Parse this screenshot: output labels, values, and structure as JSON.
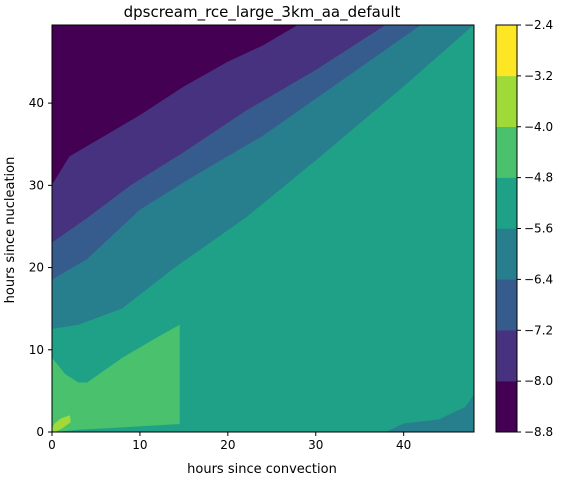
{
  "chart_data": {
    "type": "contour",
    "title": "dpscream_rce_large_3km_aa_default",
    "xlabel": "hours since convection",
    "ylabel": "hours since nucleation",
    "xlim": [
      0,
      48
    ],
    "ylim": [
      0,
      49.5
    ],
    "x_ticks": [
      0,
      10,
      20,
      30,
      40
    ],
    "y_ticks": [
      0,
      10,
      20,
      30,
      40
    ],
    "x_tick_labels": [
      "0",
      "10",
      "20",
      "30",
      "40"
    ],
    "y_tick_labels": [
      "0",
      "10",
      "20",
      "30",
      "40"
    ],
    "colorbar": {
      "levels": [
        -8.8,
        -8.0,
        -7.2,
        -6.4,
        -5.6,
        -4.8,
        -4.0,
        -3.2,
        -2.4
      ],
      "labels": [
        "−8.8",
        "−8.0",
        "−7.2",
        "−6.4",
        "−5.6",
        "−4.8",
        "−4.0",
        "−3.2",
        "−2.4"
      ],
      "colors": [
        "#440154",
        "#46327e",
        "#365c8d",
        "#277f8e",
        "#1fa187",
        "#4ac16d",
        "#a0da39",
        "#fde725"
      ]
    },
    "regions": [
      {
        "band": "-8.8 to -8.0",
        "color": "#440154",
        "boundary": [
          [
            0,
            30
          ],
          [
            2,
            33.5
          ],
          [
            6,
            36
          ],
          [
            10,
            38.5
          ],
          [
            15,
            42
          ],
          [
            20,
            45
          ],
          [
            24,
            47
          ],
          [
            28,
            49.5
          ],
          [
            0,
            49.5
          ]
        ]
      },
      {
        "band": "-8.0 to -7.2",
        "color": "#46327e",
        "boundary": [
          [
            0,
            30
          ],
          [
            2,
            33.5
          ],
          [
            6,
            36
          ],
          [
            10,
            38.5
          ],
          [
            15,
            42
          ],
          [
            20,
            45
          ],
          [
            24,
            47
          ],
          [
            28,
            49.5
          ],
          [
            38,
            49.5
          ],
          [
            30,
            44
          ],
          [
            22,
            39
          ],
          [
            15,
            34
          ],
          [
            9,
            30
          ],
          [
            4,
            26
          ],
          [
            0,
            23
          ]
        ]
      },
      {
        "band": "-7.2 to -6.4",
        "color": "#365c8d",
        "boundary": [
          [
            0,
            23
          ],
          [
            4,
            26
          ],
          [
            9,
            30
          ],
          [
            15,
            34
          ],
          [
            22,
            39
          ],
          [
            30,
            44
          ],
          [
            38,
            49.5
          ],
          [
            42,
            49.5
          ],
          [
            32,
            42
          ],
          [
            24,
            36
          ],
          [
            16,
            31
          ],
          [
            10,
            27
          ],
          [
            4,
            21
          ],
          [
            0,
            18.5
          ]
        ]
      },
      {
        "band": "-6.4 to -5.6",
        "color": "#277f8e",
        "boundary": [
          [
            0,
            18.5
          ],
          [
            4,
            21
          ],
          [
            10,
            27
          ],
          [
            16,
            31
          ],
          [
            24,
            36
          ],
          [
            32,
            42
          ],
          [
            42,
            49.5
          ],
          [
            48,
            49.5
          ],
          [
            40,
            42
          ],
          [
            30,
            33
          ],
          [
            22,
            26
          ],
          [
            14,
            20
          ],
          [
            8,
            15
          ],
          [
            3,
            13
          ],
          [
            0,
            12.5
          ]
        ]
      },
      {
        "band": "-5.6 to -4.8",
        "color": "#1fa187",
        "boundary": [
          [
            0,
            12.5
          ],
          [
            3,
            13
          ],
          [
            8,
            15
          ],
          [
            14,
            20
          ],
          [
            22,
            26
          ],
          [
            30,
            33
          ],
          [
            40,
            42
          ],
          [
            48,
            49.5
          ],
          [
            48,
            0
          ],
          [
            0,
            0
          ]
        ]
      },
      {
        "band": "-4.8 to -4.0 (lower left)",
        "color": "#4ac16d",
        "boundary": [
          [
            0,
            2.5
          ],
          [
            2,
            3.5
          ],
          [
            4,
            6
          ],
          [
            8,
            9
          ],
          [
            12,
            11.5
          ],
          [
            14.5,
            13
          ],
          [
            14.5,
            1
          ],
          [
            8,
            0.6
          ],
          [
            3,
            0.3
          ],
          [
            0,
            0
          ]
        ]
      },
      {
        "band": "-4.8 to -4.0 (left strip)",
        "color": "#4ac16d",
        "boundary": [
          [
            0,
            0
          ],
          [
            0,
            9
          ],
          [
            1.5,
            7
          ],
          [
            3,
            6
          ],
          [
            4,
            6
          ],
          [
            3,
            4
          ],
          [
            1,
            1
          ],
          [
            0.5,
            0
          ]
        ]
      },
      {
        "band": "-4.0 to -3.2",
        "color": "#a0da39",
        "boundary": [
          [
            0,
            0.3
          ],
          [
            0.3,
            1
          ],
          [
            1,
            1.6
          ],
          [
            2,
            2
          ],
          [
            2.1,
            1.2
          ],
          [
            1.2,
            0.5
          ],
          [
            0.3,
            0
          ]
        ]
      },
      {
        "band": "-6.4 to -5.6 (lower right)",
        "color": "#277f8e",
        "boundary": [
          [
            38,
            0
          ],
          [
            40,
            1
          ],
          [
            44,
            1.5
          ],
          [
            47,
            3
          ],
          [
            48,
            4.5
          ],
          [
            48,
            0
          ]
        ]
      }
    ]
  }
}
